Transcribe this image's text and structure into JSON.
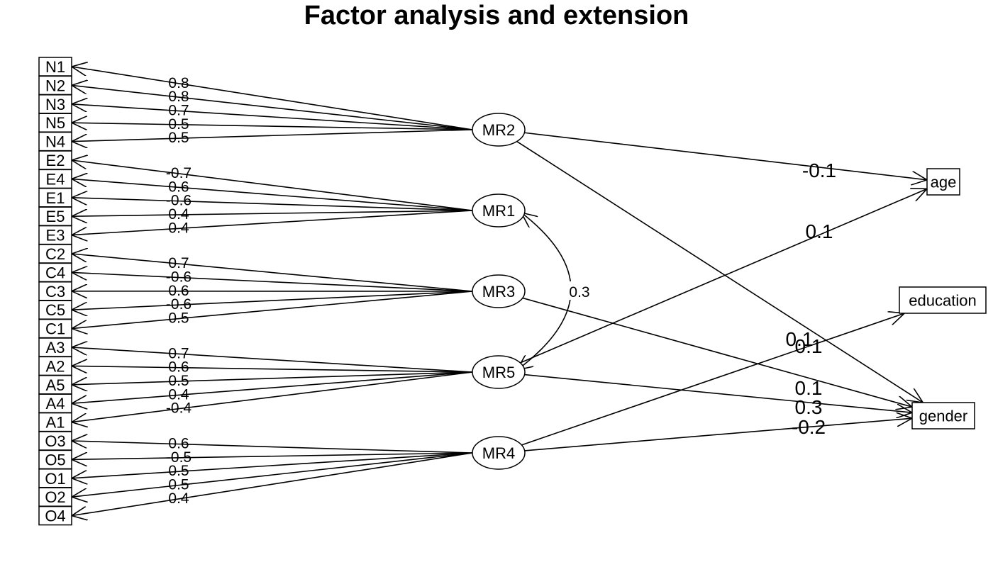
{
  "title": "Factor analysis and extension",
  "items": [
    "N1",
    "N2",
    "N3",
    "N5",
    "N4",
    "E2",
    "E4",
    "E1",
    "E5",
    "E3",
    "C2",
    "C4",
    "C3",
    "C5",
    "C1",
    "A3",
    "A2",
    "A5",
    "A4",
    "A1",
    "O3",
    "O5",
    "O1",
    "O2",
    "O4"
  ],
  "factors": [
    "MR2",
    "MR1",
    "MR3",
    "MR5",
    "MR4"
  ],
  "extensions": [
    "age",
    "education",
    "gender"
  ],
  "loadings": [
    {
      "factor": "MR2",
      "item": "N1",
      "value": "0.8"
    },
    {
      "factor": "MR2",
      "item": "N2",
      "value": "0.8"
    },
    {
      "factor": "MR2",
      "item": "N3",
      "value": "0.7"
    },
    {
      "factor": "MR2",
      "item": "N5",
      "value": "0.5"
    },
    {
      "factor": "MR2",
      "item": "N4",
      "value": "0.5"
    },
    {
      "factor": "MR1",
      "item": "E2",
      "value": "-0.7"
    },
    {
      "factor": "MR1",
      "item": "E4",
      "value": "0.6"
    },
    {
      "factor": "MR1",
      "item": "E1",
      "value": "-0.6"
    },
    {
      "factor": "MR1",
      "item": "E5",
      "value": "0.4"
    },
    {
      "factor": "MR1",
      "item": "E3",
      "value": "0.4"
    },
    {
      "factor": "MR3",
      "item": "C2",
      "value": "0.7"
    },
    {
      "factor": "MR3",
      "item": "C4",
      "value": "-0.6"
    },
    {
      "factor": "MR3",
      "item": "C3",
      "value": "0.6"
    },
    {
      "factor": "MR3",
      "item": "C5",
      "value": "-0.6"
    },
    {
      "factor": "MR3",
      "item": "C1",
      "value": "0.5"
    },
    {
      "factor": "MR5",
      "item": "A3",
      "value": "0.7"
    },
    {
      "factor": "MR5",
      "item": "A2",
      "value": "0.6"
    },
    {
      "factor": "MR5",
      "item": "A5",
      "value": "0.5"
    },
    {
      "factor": "MR5",
      "item": "A4",
      "value": "0.4"
    },
    {
      "factor": "MR5",
      "item": "A1",
      "value": "-0.4"
    },
    {
      "factor": "MR4",
      "item": "O3",
      "value": "0.6"
    },
    {
      "factor": "MR4",
      "item": "O5",
      "value": "-0.5"
    },
    {
      "factor": "MR4",
      "item": "O1",
      "value": "0.5"
    },
    {
      "factor": "MR4",
      "item": "O2",
      "value": "0.5"
    },
    {
      "factor": "MR4",
      "item": "O4",
      "value": "0.4"
    }
  ],
  "extension_paths": [
    {
      "factor": "MR2",
      "target": "age",
      "value": "-0.1"
    },
    {
      "factor": "MR2",
      "target": "gender",
      "value": "0.1"
    },
    {
      "factor": "MR5",
      "target": "age",
      "value": "0.1"
    },
    {
      "factor": "MR4",
      "target": "education",
      "value": "0.1"
    },
    {
      "factor": "MR3",
      "target": "gender",
      "value": "0.1"
    },
    {
      "factor": "MR5",
      "target": "gender",
      "value": "0.3"
    },
    {
      "factor": "MR4",
      "target": "gender",
      "value": "-0.2"
    }
  ],
  "factor_correlations": [
    {
      "from": "MR1",
      "to": "MR5",
      "value": "0.3"
    }
  ]
}
